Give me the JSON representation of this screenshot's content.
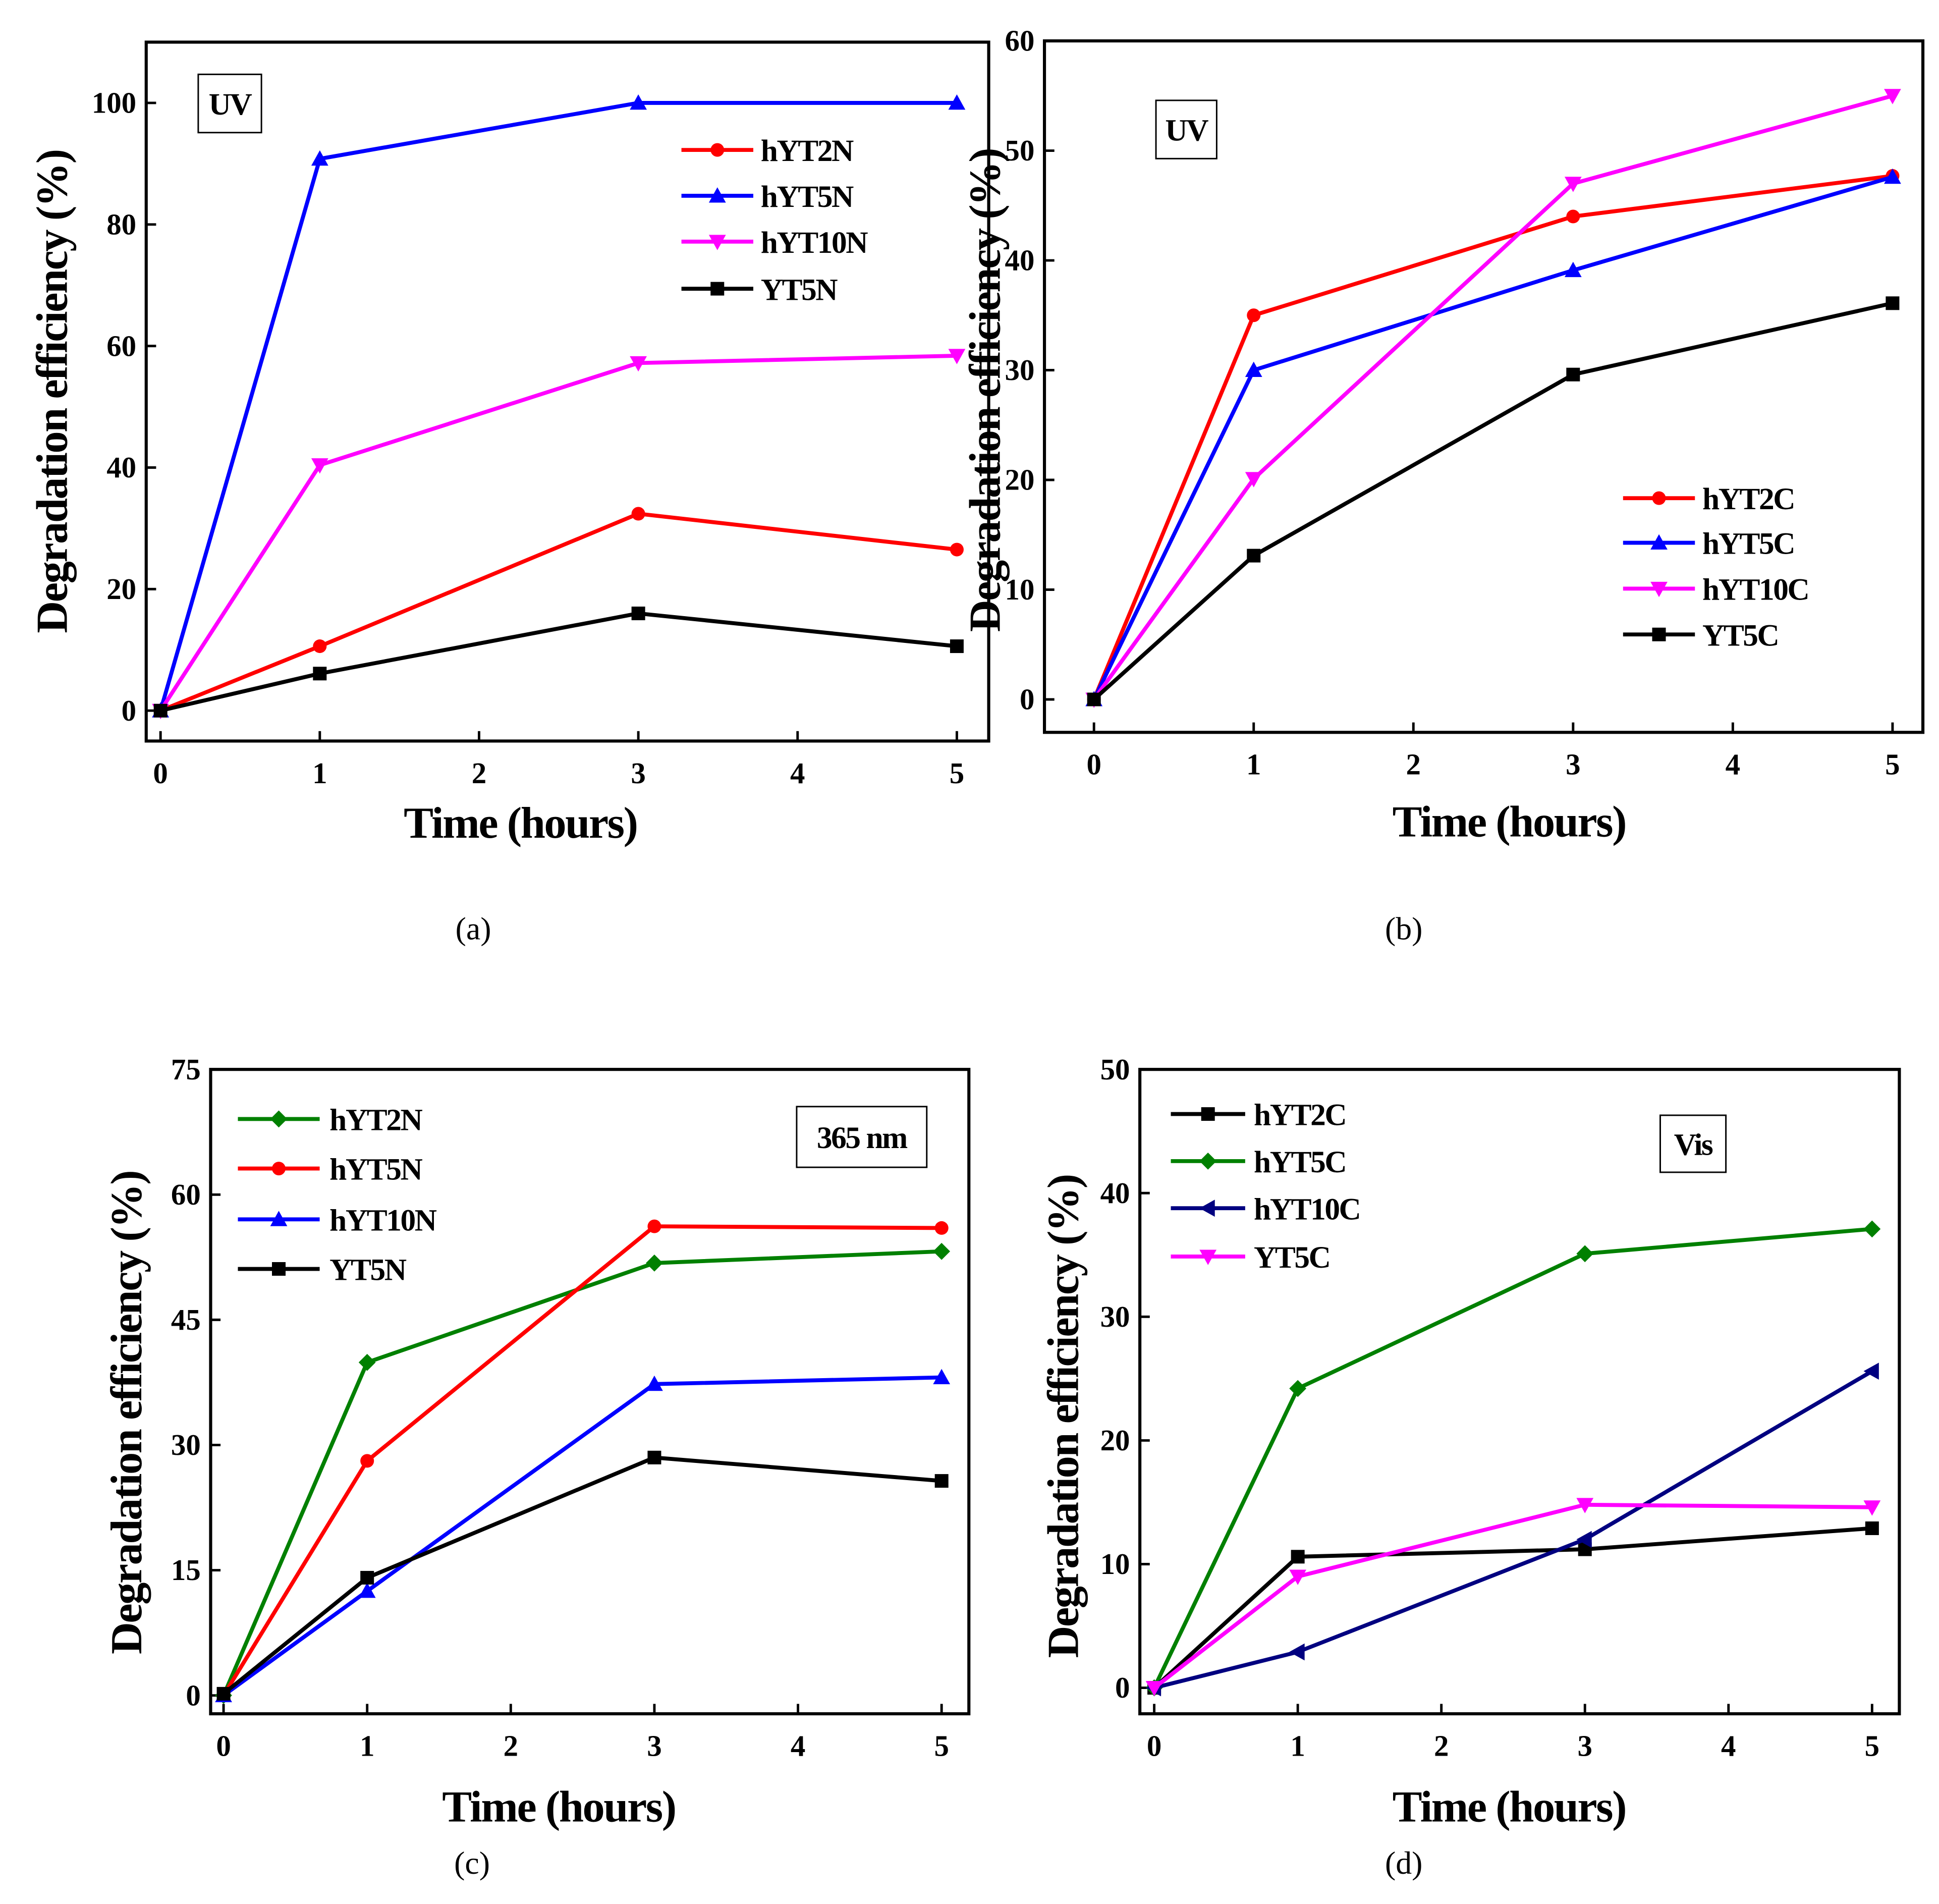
{
  "chart_data": [
    {
      "type": "line",
      "caption": "(a)",
      "annotation": "UV",
      "xlabel": "Time (hours)",
      "ylabel": "Degradation efficiency (%)",
      "xlim": [
        -0.09,
        5.2
      ],
      "ylim": [
        -5,
        110
      ],
      "xticks": [
        0,
        1,
        2,
        3,
        4,
        5
      ],
      "yticks": [
        0,
        20,
        40,
        60,
        80,
        100
      ],
      "legend": "top-right",
      "x": [
        0,
        1,
        3,
        5
      ],
      "series": [
        {
          "name": "hYT2N",
          "color": "#ff0000",
          "marker": "circle",
          "values": [
            0,
            10.6,
            32.4,
            26.5
          ]
        },
        {
          "name": "hYT5N",
          "color": "#0000ff",
          "marker": "triangle-up",
          "values": [
            0,
            90.8,
            100,
            100
          ]
        },
        {
          "name": "hYT10N",
          "color": "#ff00ff",
          "marker": "triangle-down",
          "values": [
            0,
            40.4,
            57.2,
            58.4
          ]
        },
        {
          "name": "YT5N",
          "color": "#000000",
          "marker": "square",
          "values": [
            0,
            6.1,
            16,
            10.6
          ]
        }
      ]
    },
    {
      "type": "line",
      "caption": "(b)",
      "annotation": "UV",
      "xlabel": "Time (hours)",
      "ylabel": "Degradation efficiency (%)",
      "xlim": [
        -0.31,
        5.19
      ],
      "ylim": [
        -3,
        60
      ],
      "xticks": [
        0,
        1,
        2,
        3,
        4,
        5
      ],
      "yticks": [
        0,
        10,
        20,
        30,
        40,
        50,
        60
      ],
      "legend": "bottom-right",
      "x": [
        0,
        1,
        3,
        5
      ],
      "series": [
        {
          "name": "hYT2C",
          "color": "#ff0000",
          "marker": "circle",
          "values": [
            0,
            35,
            44,
            47.7
          ]
        },
        {
          "name": "hYT5C",
          "color": "#0000ff",
          "marker": "triangle-up",
          "values": [
            0,
            30,
            39.1,
            47.6
          ]
        },
        {
          "name": "hYT10C",
          "color": "#ff00ff",
          "marker": "triangle-down",
          "values": [
            0,
            20.1,
            47,
            55
          ]
        },
        {
          "name": "YT5C",
          "color": "#000000",
          "marker": "square",
          "values": [
            0,
            13.1,
            29.6,
            36.1
          ]
        }
      ]
    },
    {
      "type": "line",
      "caption": "(c)",
      "annotation": "365 nm",
      "xlabel": "Time (hours)",
      "ylabel": "Degradation efficiency (%)",
      "xlim": [
        -0.09,
        5.19
      ],
      "ylim": [
        -2.2,
        75
      ],
      "xticks": [
        0,
        1,
        2,
        3,
        4,
        5
      ],
      "yticks": [
        0,
        15,
        30,
        45,
        60,
        75
      ],
      "legend": "top-left",
      "x": [
        0,
        1,
        3,
        5
      ],
      "series": [
        {
          "name": "hYT2N",
          "color": "#008000",
          "marker": "diamond",
          "values": [
            0,
            39.9,
            51.8,
            53.2
          ]
        },
        {
          "name": "hYT5N",
          "color": "#ff0000",
          "marker": "circle",
          "values": [
            0,
            28.1,
            56.2,
            56
          ]
        },
        {
          "name": "hYT10N",
          "color": "#0000ff",
          "marker": "triangle-up",
          "values": [
            0,
            12.5,
            37.3,
            38.1
          ]
        },
        {
          "name": "YT5N",
          "color": "#000000",
          "marker": "square",
          "values": [
            0.2,
            14.1,
            28.5,
            25.7
          ]
        }
      ]
    },
    {
      "type": "line",
      "caption": "(d)",
      "annotation": "Vis",
      "xlabel": "Time (hours)",
      "ylabel": "Degradation efficiency (%)",
      "xlim": [
        -0.1,
        5.19
      ],
      "ylim": [
        -2.1,
        50
      ],
      "xticks": [
        0,
        1,
        2,
        3,
        4,
        5
      ],
      "yticks": [
        0,
        10,
        20,
        30,
        40,
        50
      ],
      "legend": "top-left",
      "x": [
        0,
        1,
        3,
        5
      ],
      "series": [
        {
          "name": "hYT2C",
          "color": "#000000",
          "marker": "square",
          "values": [
            0,
            10.6,
            11.2,
            12.9
          ]
        },
        {
          "name": "hYT5C",
          "color": "#008000",
          "marker": "diamond",
          "values": [
            0,
            24.2,
            35.1,
            37.1
          ]
        },
        {
          "name": "hYT10C",
          "color": "#000080",
          "marker": "triangle-left",
          "values": [
            0,
            2.9,
            12,
            25.6
          ]
        },
        {
          "name": "YT5C",
          "color": "#ff00ff",
          "marker": "triangle-down",
          "values": [
            0,
            9,
            14.8,
            14.6
          ]
        }
      ]
    }
  ]
}
